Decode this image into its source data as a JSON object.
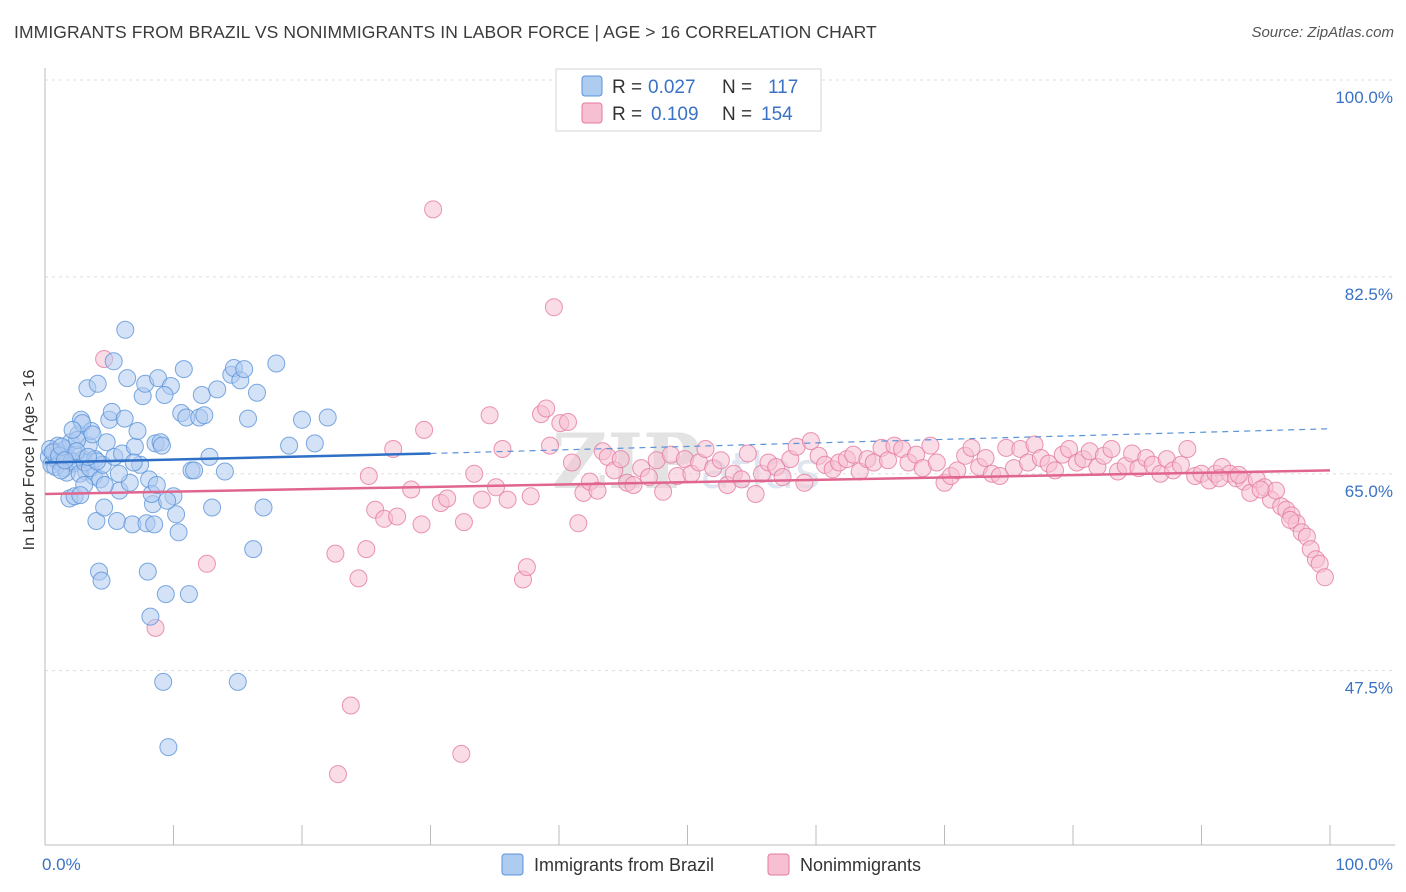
{
  "title": "IMMIGRANTS FROM BRAZIL VS NONIMMIGRANTS IN LABOR FORCE | AGE > 16 CORRELATION CHART",
  "source": "Source: ZipAtlas.com",
  "watermark": {
    "zip": "ZIP",
    "atlas": "atlas"
  },
  "colors": {
    "blue": "#5b93d8",
    "blue_fill": "#aecbf0",
    "pink": "#e57aa0",
    "pink_fill": "#f6bfd2",
    "blue_line": "#2f6fc6",
    "pink_line": "#e0668f",
    "tick": "#3a72c4"
  },
  "legend": {
    "rows": [
      {
        "r_label": "R = ",
        "r_value": "0.027",
        "n_label": "N = ",
        "n_value": "117"
      },
      {
        "r_label": "R = ",
        "r_value": "0.109",
        "n_label": "N = ",
        "n_value": "154"
      }
    ]
  },
  "chart_data": {
    "type": "scatter",
    "ylabel": "In Labor Force | Age > 16",
    "xlim": [
      0,
      100
    ],
    "ylim": [
      32,
      100
    ],
    "y_ticks": [
      {
        "value": 100,
        "label": "100.0%"
      },
      {
        "value": 82.5,
        "label": "82.5%"
      },
      {
        "value": 65,
        "label": "65.0%"
      },
      {
        "value": 47.5,
        "label": "47.5%"
      }
    ],
    "x_ticks": [
      {
        "value": 0,
        "label": "0.0%"
      },
      {
        "value": 100,
        "label": "100.0%"
      }
    ],
    "grid": true,
    "series": [
      {
        "name": "Immigrants from Brazil",
        "trend": {
          "x": [
            0,
            30
          ],
          "y": [
            66.0,
            66.8
          ],
          "dashed_to": [
            100,
            69.0
          ]
        },
        "points": [
          [
            0.3,
            66.5
          ],
          [
            0.5,
            65.8
          ],
          [
            0.7,
            67.0
          ],
          [
            0.9,
            66.2
          ],
          [
            1.0,
            67.5
          ],
          [
            1.2,
            66.0
          ],
          [
            1.4,
            66.8
          ],
          [
            1.5,
            65.5
          ],
          [
            1.6,
            67.2
          ],
          [
            1.8,
            66.4
          ],
          [
            2.0,
            67.8
          ],
          [
            2.2,
            65.9
          ],
          [
            2.4,
            66.7
          ],
          [
            2.6,
            68.5
          ],
          [
            2.8,
            69.8
          ],
          [
            3.0,
            66.3
          ],
          [
            3.2,
            65.2
          ],
          [
            3.4,
            67.5
          ],
          [
            3.6,
            68.8
          ],
          [
            3.8,
            64.8
          ],
          [
            0.4,
            67.2
          ],
          [
            0.6,
            66.9
          ],
          [
            0.8,
            65.6
          ],
          [
            1.1,
            66.6
          ],
          [
            1.3,
            67.4
          ],
          [
            1.7,
            65.1
          ],
          [
            1.9,
            62.8
          ],
          [
            2.1,
            66.1
          ],
          [
            2.3,
            63.0
          ],
          [
            2.5,
            68.0
          ],
          [
            2.7,
            65.0
          ],
          [
            2.9,
            69.5
          ],
          [
            3.1,
            66.0
          ],
          [
            3.3,
            72.6
          ],
          [
            3.5,
            65.5
          ],
          [
            3.7,
            68.5
          ],
          [
            3.9,
            66.3
          ],
          [
            4.1,
            73.0
          ],
          [
            4.3,
            64.5
          ],
          [
            4.5,
            65.8
          ],
          [
            4.0,
            60.8
          ],
          [
            4.2,
            56.3
          ],
          [
            4.4,
            55.5
          ],
          [
            4.6,
            62.0
          ],
          [
            4.8,
            67.8
          ],
          [
            5.0,
            69.8
          ],
          [
            5.2,
            70.5
          ],
          [
            5.4,
            66.5
          ],
          [
            5.6,
            60.8
          ],
          [
            5.8,
            63.5
          ],
          [
            6.0,
            66.8
          ],
          [
            6.2,
            69.9
          ],
          [
            6.4,
            73.5
          ],
          [
            6.6,
            64.2
          ],
          [
            6.8,
            60.5
          ],
          [
            7.0,
            67.4
          ],
          [
            7.2,
            68.8
          ],
          [
            7.4,
            65.8
          ],
          [
            7.6,
            71.9
          ],
          [
            7.8,
            73.0
          ],
          [
            8.0,
            56.3
          ],
          [
            8.2,
            52.3
          ],
          [
            8.4,
            62.3
          ],
          [
            8.6,
            67.7
          ],
          [
            8.8,
            73.5
          ],
          [
            9.0,
            67.8
          ],
          [
            9.2,
            46.5
          ],
          [
            9.4,
            54.3
          ],
          [
            9.6,
            40.7
          ],
          [
            9.8,
            72.8
          ],
          [
            10.0,
            63.0
          ],
          [
            10.2,
            61.4
          ],
          [
            10.4,
            59.8
          ],
          [
            10.6,
            70.4
          ],
          [
            10.8,
            74.3
          ],
          [
            11.0,
            70.0
          ],
          [
            11.2,
            54.3
          ],
          [
            11.4,
            65.3
          ],
          [
            11.6,
            65.3
          ],
          [
            12.0,
            70.0
          ],
          [
            12.2,
            72.0
          ],
          [
            12.4,
            70.2
          ],
          [
            12.8,
            66.5
          ],
          [
            13.0,
            62.0
          ],
          [
            13.4,
            72.5
          ],
          [
            14.0,
            65.2
          ],
          [
            14.5,
            73.8
          ],
          [
            14.7,
            74.4
          ],
          [
            15.0,
            46.5
          ],
          [
            15.2,
            73.3
          ],
          [
            15.5,
            74.3
          ],
          [
            15.8,
            69.9
          ],
          [
            16.2,
            58.3
          ],
          [
            16.5,
            72.2
          ],
          [
            17.0,
            62.0
          ],
          [
            18.0,
            74.8
          ],
          [
            19.0,
            67.5
          ],
          [
            20.0,
            69.8
          ],
          [
            21.0,
            67.7
          ],
          [
            22.0,
            70.0
          ],
          [
            7.9,
            60.6
          ],
          [
            8.1,
            64.5
          ],
          [
            8.3,
            63.2
          ],
          [
            8.5,
            60.5
          ],
          [
            8.7,
            64.0
          ],
          [
            9.1,
            67.5
          ],
          [
            9.3,
            72.0
          ],
          [
            9.5,
            62.6
          ],
          [
            1.25,
            65.3
          ],
          [
            2.15,
            68.9
          ],
          [
            3.05,
            64.0
          ],
          [
            4.05,
            66.1
          ],
          [
            2.45,
            67.0
          ],
          [
            3.35,
            66.5
          ],
          [
            6.25,
            77.8
          ],
          [
            5.35,
            75.0
          ],
          [
            4.65,
            64.0
          ],
          [
            5.75,
            65.0
          ],
          [
            6.9,
            66.0
          ],
          [
            2.75,
            63.1
          ],
          [
            1.55,
            66.2
          ]
        ]
      },
      {
        "name": "Nonimmigrants",
        "trend": {
          "x": [
            0,
            100
          ],
          "y": [
            63.2,
            65.3
          ]
        },
        "points": [
          [
            4.6,
            75.2
          ],
          [
            8.6,
            51.3
          ],
          [
            12.6,
            57.0
          ],
          [
            22.6,
            57.9
          ],
          [
            22.8,
            38.3
          ],
          [
            23.8,
            44.4
          ],
          [
            24.4,
            55.7
          ],
          [
            25.0,
            58.3
          ],
          [
            25.2,
            64.8
          ],
          [
            25.7,
            61.8
          ],
          [
            26.4,
            61.0
          ],
          [
            27.1,
            67.2
          ],
          [
            27.4,
            61.2
          ],
          [
            28.5,
            63.6
          ],
          [
            29.3,
            60.5
          ],
          [
            29.5,
            68.9
          ],
          [
            30.2,
            88.5
          ],
          [
            30.8,
            62.4
          ],
          [
            31.3,
            62.8
          ],
          [
            32.4,
            40.1
          ],
          [
            32.6,
            60.7
          ],
          [
            33.4,
            65.0
          ],
          [
            34.0,
            62.7
          ],
          [
            34.6,
            70.2
          ],
          [
            35.1,
            63.8
          ],
          [
            35.6,
            67.2
          ],
          [
            36.0,
            62.7
          ],
          [
            37.2,
            55.6
          ],
          [
            37.5,
            56.7
          ],
          [
            37.8,
            63.0
          ],
          [
            38.6,
            70.3
          ],
          [
            39.0,
            70.8
          ],
          [
            39.3,
            67.5
          ],
          [
            39.6,
            79.8
          ],
          [
            40.1,
            69.5
          ],
          [
            40.7,
            69.6
          ],
          [
            41.0,
            66.0
          ],
          [
            41.5,
            60.6
          ],
          [
            41.9,
            63.3
          ],
          [
            42.4,
            64.3
          ],
          [
            43.0,
            63.5
          ],
          [
            43.4,
            67.0
          ],
          [
            43.8,
            66.5
          ],
          [
            44.3,
            65.3
          ],
          [
            44.8,
            66.3
          ],
          [
            45.3,
            64.2
          ],
          [
            45.8,
            64.0
          ],
          [
            46.4,
            65.5
          ],
          [
            47.0,
            64.7
          ],
          [
            47.6,
            66.2
          ],
          [
            48.1,
            63.4
          ],
          [
            48.7,
            66.7
          ],
          [
            49.2,
            64.8
          ],
          [
            49.8,
            66.3
          ],
          [
            50.3,
            65.0
          ],
          [
            50.9,
            66.0
          ],
          [
            51.4,
            67.2
          ],
          [
            52.0,
            65.5
          ],
          [
            52.6,
            66.2
          ],
          [
            53.1,
            64.0
          ],
          [
            53.6,
            65.0
          ],
          [
            54.2,
            64.5
          ],
          [
            54.7,
            66.8
          ],
          [
            55.3,
            63.2
          ],
          [
            55.8,
            65.0
          ],
          [
            56.3,
            66.0
          ],
          [
            56.9,
            65.6
          ],
          [
            57.4,
            64.7
          ],
          [
            58.0,
            66.3
          ],
          [
            58.5,
            67.4
          ],
          [
            59.1,
            64.2
          ],
          [
            59.6,
            67.9
          ],
          [
            60.2,
            66.6
          ],
          [
            60.7,
            65.8
          ],
          [
            61.3,
            65.4
          ],
          [
            61.8,
            66.0
          ],
          [
            62.4,
            66.3
          ],
          [
            62.9,
            66.7
          ],
          [
            63.4,
            65.2
          ],
          [
            64.0,
            66.3
          ],
          [
            64.5,
            66.0
          ],
          [
            65.1,
            67.3
          ],
          [
            65.6,
            66.2
          ],
          [
            66.1,
            67.5
          ],
          [
            66.7,
            67.2
          ],
          [
            67.2,
            66.0
          ],
          [
            67.8,
            66.7
          ],
          [
            68.3,
            65.5
          ],
          [
            68.9,
            67.5
          ],
          [
            69.4,
            66.0
          ],
          [
            70.0,
            64.2
          ],
          [
            70.5,
            64.8
          ],
          [
            71.0,
            65.3
          ],
          [
            71.6,
            66.6
          ],
          [
            72.1,
            67.3
          ],
          [
            72.7,
            65.6
          ],
          [
            73.2,
            66.4
          ],
          [
            73.7,
            65.0
          ],
          [
            74.3,
            64.8
          ],
          [
            74.8,
            67.3
          ],
          [
            75.4,
            65.5
          ],
          [
            75.9,
            67.2
          ],
          [
            76.5,
            66.0
          ],
          [
            77.0,
            67.6
          ],
          [
            77.5,
            66.4
          ],
          [
            78.1,
            65.9
          ],
          [
            78.6,
            65.3
          ],
          [
            79.2,
            66.7
          ],
          [
            79.7,
            67.2
          ],
          [
            80.3,
            66.0
          ],
          [
            80.8,
            66.3
          ],
          [
            81.3,
            67.0
          ],
          [
            81.9,
            65.6
          ],
          [
            82.4,
            66.6
          ],
          [
            83.0,
            67.2
          ],
          [
            83.5,
            65.2
          ],
          [
            84.1,
            65.7
          ],
          [
            84.6,
            66.8
          ],
          [
            85.1,
            65.5
          ],
          [
            85.7,
            66.4
          ],
          [
            86.2,
            65.8
          ],
          [
            86.8,
            65.0
          ],
          [
            87.3,
            66.3
          ],
          [
            87.8,
            65.3
          ],
          [
            88.4,
            65.8
          ],
          [
            88.9,
            67.2
          ],
          [
            89.5,
            64.8
          ],
          [
            90.0,
            65.0
          ],
          [
            90.6,
            64.4
          ],
          [
            91.1,
            65.0
          ],
          [
            91.6,
            65.6
          ],
          [
            92.2,
            65.0
          ],
          [
            92.7,
            64.6
          ],
          [
            93.3,
            64.3
          ],
          [
            93.8,
            63.3
          ],
          [
            94.3,
            64.5
          ],
          [
            94.9,
            63.8
          ],
          [
            95.4,
            62.7
          ],
          [
            95.8,
            63.5
          ],
          [
            96.2,
            62.1
          ],
          [
            96.6,
            61.8
          ],
          [
            97.0,
            61.3
          ],
          [
            97.4,
            60.6
          ],
          [
            97.8,
            59.8
          ],
          [
            98.2,
            59.4
          ],
          [
            98.5,
            58.3
          ],
          [
            98.9,
            57.4
          ],
          [
            99.2,
            57.0
          ],
          [
            99.6,
            55.8
          ],
          [
            91.4,
            64.6
          ],
          [
            92.9,
            64.9
          ],
          [
            94.6,
            63.6
          ],
          [
            96.9,
            60.9
          ]
        ]
      }
    ]
  },
  "bottom_legend": [
    {
      "label": "Immigrants from Brazil"
    },
    {
      "label": "Nonimmigrants"
    }
  ]
}
